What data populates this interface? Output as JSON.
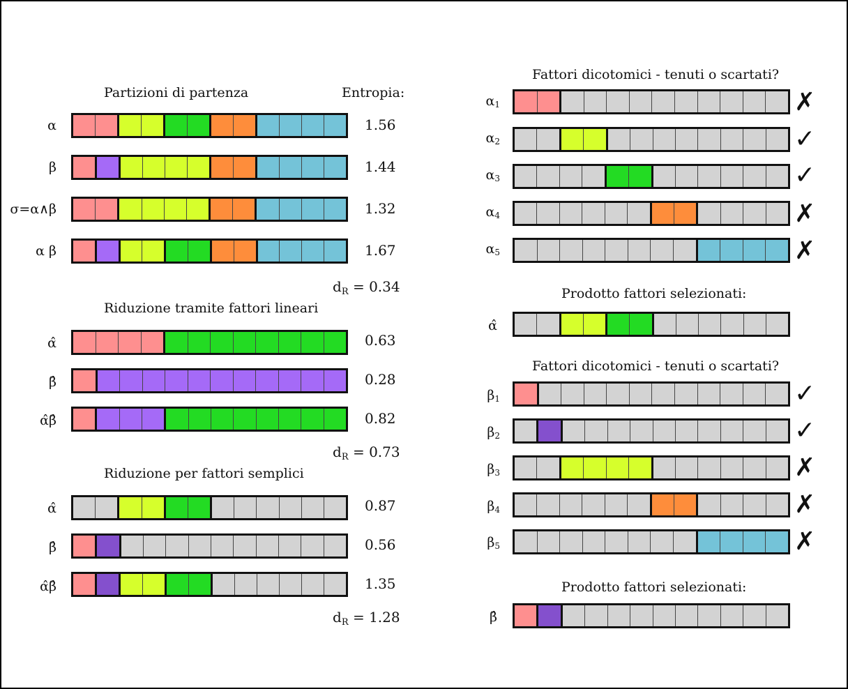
{
  "colors": {
    "pink": "#fe8f8f",
    "purple": "#a56af7",
    "dark_purple": "#8450cd",
    "yellow": "#d6ff2c",
    "green": "#23db23",
    "orange": "#fe8d3b",
    "blue": "#74c3d8",
    "gray": "#d3d3d3"
  },
  "left": {
    "section1": {
      "title": "Partizioni di partenza",
      "entropy_header": "Entropia:",
      "rows": [
        {
          "label": "α",
          "entropy": "1.56",
          "cells": [
            "pink",
            "pink",
            "yellow",
            "yellow",
            "green",
            "green",
            "orange",
            "orange",
            "blue",
            "blue",
            "blue",
            "blue"
          ]
        },
        {
          "label": "β",
          "entropy": "1.44",
          "cells": [
            "pink",
            "purple",
            "yellow",
            "yellow",
            "yellow",
            "yellow",
            "orange",
            "orange",
            "blue",
            "blue",
            "blue",
            "blue"
          ]
        },
        {
          "label": "σ=α∧β",
          "entropy": "1.32",
          "cells": [
            "pink",
            "pink",
            "yellow",
            "yellow",
            "yellow",
            "yellow",
            "orange",
            "orange",
            "blue",
            "blue",
            "blue",
            "blue"
          ]
        },
        {
          "label": "α β",
          "entropy": "1.67",
          "cells": [
            "pink",
            "purple",
            "yellow",
            "yellow",
            "green",
            "green",
            "orange",
            "orange",
            "blue",
            "blue",
            "blue",
            "blue"
          ]
        }
      ],
      "dr_label": "d",
      "dr_sub": "R",
      "dr_value": " = 0.34"
    },
    "section2": {
      "title": "Riduzione tramite fattori lineari",
      "rows": [
        {
          "label": "α̂",
          "entropy": "0.63",
          "cells": [
            "pink",
            "pink",
            "pink",
            "pink",
            "green",
            "green",
            "green",
            "green",
            "green",
            "green",
            "green",
            "green"
          ]
        },
        {
          "label": "β̂",
          "entropy": "0.28",
          "cells": [
            "pink",
            "purple",
            "purple",
            "purple",
            "purple",
            "purple",
            "purple",
            "purple",
            "purple",
            "purple",
            "purple",
            "purple"
          ]
        },
        {
          "label": "α̂β̂",
          "entropy": "0.82",
          "cells": [
            "pink",
            "purple",
            "purple",
            "purple",
            "green",
            "green",
            "green",
            "green",
            "green",
            "green",
            "green",
            "green"
          ]
        }
      ],
      "dr_label": "d",
      "dr_sub": "R",
      "dr_value": " = 0.73"
    },
    "section3": {
      "title": "Riduzione per fattori semplici",
      "rows": [
        {
          "label": "α̂",
          "entropy": "0.87",
          "cells": [
            "gray",
            "gray",
            "yellow",
            "yellow",
            "green",
            "green",
            "gray",
            "gray",
            "gray",
            "gray",
            "gray",
            "gray"
          ]
        },
        {
          "label": "β̂",
          "entropy": "0.56",
          "cells": [
            "pink",
            "dark_purple",
            "gray",
            "gray",
            "gray",
            "gray",
            "gray",
            "gray",
            "gray",
            "gray",
            "gray",
            "gray"
          ]
        },
        {
          "label": "α̂β̂",
          "entropy": "1.35",
          "cells": [
            "pink",
            "dark_purple",
            "yellow",
            "yellow",
            "green",
            "green",
            "gray",
            "gray",
            "gray",
            "gray",
            "gray",
            "gray"
          ]
        }
      ],
      "dr_label": "d",
      "dr_sub": "R",
      "dr_value": " = 1.28"
    }
  },
  "right": {
    "alpha_block": {
      "title": "Fattori dicotomici - tenuti o scartati?",
      "rows": [
        {
          "label": "α",
          "sub": "1",
          "mark": "✗",
          "cells": [
            "pink",
            "pink",
            "gray",
            "gray",
            "gray",
            "gray",
            "gray",
            "gray",
            "gray",
            "gray",
            "gray",
            "gray"
          ]
        },
        {
          "label": "α",
          "sub": "2",
          "mark": "✓",
          "cells": [
            "gray",
            "gray",
            "yellow",
            "yellow",
            "gray",
            "gray",
            "gray",
            "gray",
            "gray",
            "gray",
            "gray",
            "gray"
          ]
        },
        {
          "label": "α",
          "sub": "3",
          "mark": "✓",
          "cells": [
            "gray",
            "gray",
            "gray",
            "gray",
            "green",
            "green",
            "gray",
            "gray",
            "gray",
            "gray",
            "gray",
            "gray"
          ]
        },
        {
          "label": "α",
          "sub": "4",
          "mark": "✗",
          "cells": [
            "gray",
            "gray",
            "gray",
            "gray",
            "gray",
            "gray",
            "orange",
            "orange",
            "gray",
            "gray",
            "gray",
            "gray"
          ]
        },
        {
          "label": "α",
          "sub": "5",
          "mark": "✗",
          "cells": [
            "gray",
            "gray",
            "gray",
            "gray",
            "gray",
            "gray",
            "gray",
            "gray",
            "blue",
            "blue",
            "blue",
            "blue"
          ]
        }
      ],
      "product_title": "Prodotto fattori selezionati:",
      "product": {
        "label": "α̂",
        "cells": [
          "gray",
          "gray",
          "yellow",
          "yellow",
          "green",
          "green",
          "gray",
          "gray",
          "gray",
          "gray",
          "gray",
          "gray"
        ]
      }
    },
    "beta_block": {
      "title": "Fattori dicotomici - tenuti o scartati?",
      "rows": [
        {
          "label": "β",
          "sub": "1",
          "mark": "✓",
          "cells": [
            "pink",
            "gray",
            "gray",
            "gray",
            "gray",
            "gray",
            "gray",
            "gray",
            "gray",
            "gray",
            "gray",
            "gray"
          ]
        },
        {
          "label": "β",
          "sub": "2",
          "mark": "✓",
          "cells": [
            "gray",
            "dark_purple",
            "gray",
            "gray",
            "gray",
            "gray",
            "gray",
            "gray",
            "gray",
            "gray",
            "gray",
            "gray"
          ]
        },
        {
          "label": "β",
          "sub": "3",
          "mark": "✗",
          "cells": [
            "gray",
            "gray",
            "yellow",
            "yellow",
            "yellow",
            "yellow",
            "gray",
            "gray",
            "gray",
            "gray",
            "gray",
            "gray"
          ]
        },
        {
          "label": "β",
          "sub": "4",
          "mark": "✗",
          "cells": [
            "gray",
            "gray",
            "gray",
            "gray",
            "gray",
            "gray",
            "orange",
            "orange",
            "gray",
            "gray",
            "gray",
            "gray"
          ]
        },
        {
          "label": "β",
          "sub": "5",
          "mark": "✗",
          "cells": [
            "gray",
            "gray",
            "gray",
            "gray",
            "gray",
            "gray",
            "gray",
            "gray",
            "blue",
            "blue",
            "blue",
            "blue"
          ]
        }
      ],
      "product_title": "Prodotto fattori selezionati:",
      "product": {
        "label": "β̂",
        "cells": [
          "pink",
          "dark_purple",
          "gray",
          "gray",
          "gray",
          "gray",
          "gray",
          "gray",
          "gray",
          "gray",
          "gray",
          "gray"
        ]
      }
    }
  }
}
